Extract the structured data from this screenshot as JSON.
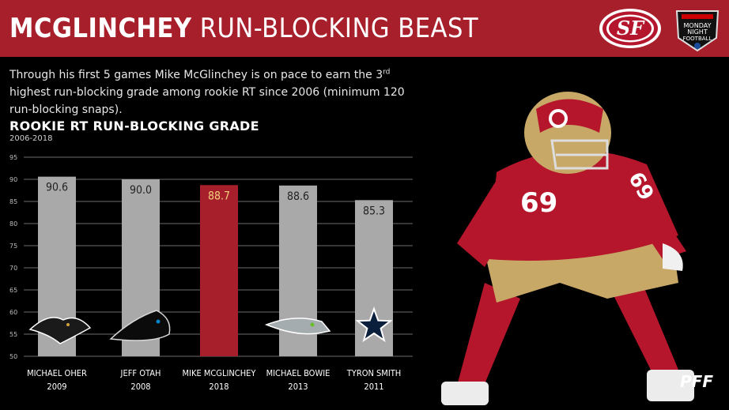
{
  "header": {
    "title_bold": "MCGLINCHEY",
    "title_light": "RUN-BLOCKING BEAST",
    "logos": [
      "49ers-logo",
      "monday-night-football-logo"
    ],
    "colors": {
      "header_bg": "#a81f2c",
      "highlight_bar": "#a81f2c",
      "default_bar": "#a9a9a9"
    }
  },
  "intro": {
    "part1": "Through his first 5 games Mike McGlinchey is on pace to earn the 3",
    "sup": "rd",
    "part2": " highest run-blocking grade among rookie RT since 2006 (minimum 120 run-blocking snaps)."
  },
  "chart_data": {
    "type": "bar",
    "title": "ROOKIE RT RUN-BLOCKING GRADE",
    "subtitle": "2006-2018",
    "categories": [
      "MICHAEL OHER",
      "JEFF OTAH",
      "MIKE MCGLINCHEY",
      "MICHAEL BOWIE",
      "TYRON SMITH"
    ],
    "years": [
      "2009",
      "2008",
      "2018",
      "2013",
      "2011"
    ],
    "values": [
      90.6,
      90.0,
      88.7,
      88.6,
      85.3
    ],
    "value_labels": [
      "90.6",
      "90.0",
      "88.7",
      "88.6",
      "85.3"
    ],
    "highlight_index": 2,
    "team_icons": [
      "ravens-icon",
      "panthers-icon",
      "none",
      "seahawks-icon",
      "cowboys-star-icon"
    ],
    "ylim": [
      50,
      95
    ],
    "yticks": [
      50,
      55,
      60,
      65,
      70,
      75,
      80,
      85,
      90,
      95
    ],
    "grid": true
  },
  "branding": {
    "pff": "PFF",
    "player_icon": "football-player-icon"
  }
}
